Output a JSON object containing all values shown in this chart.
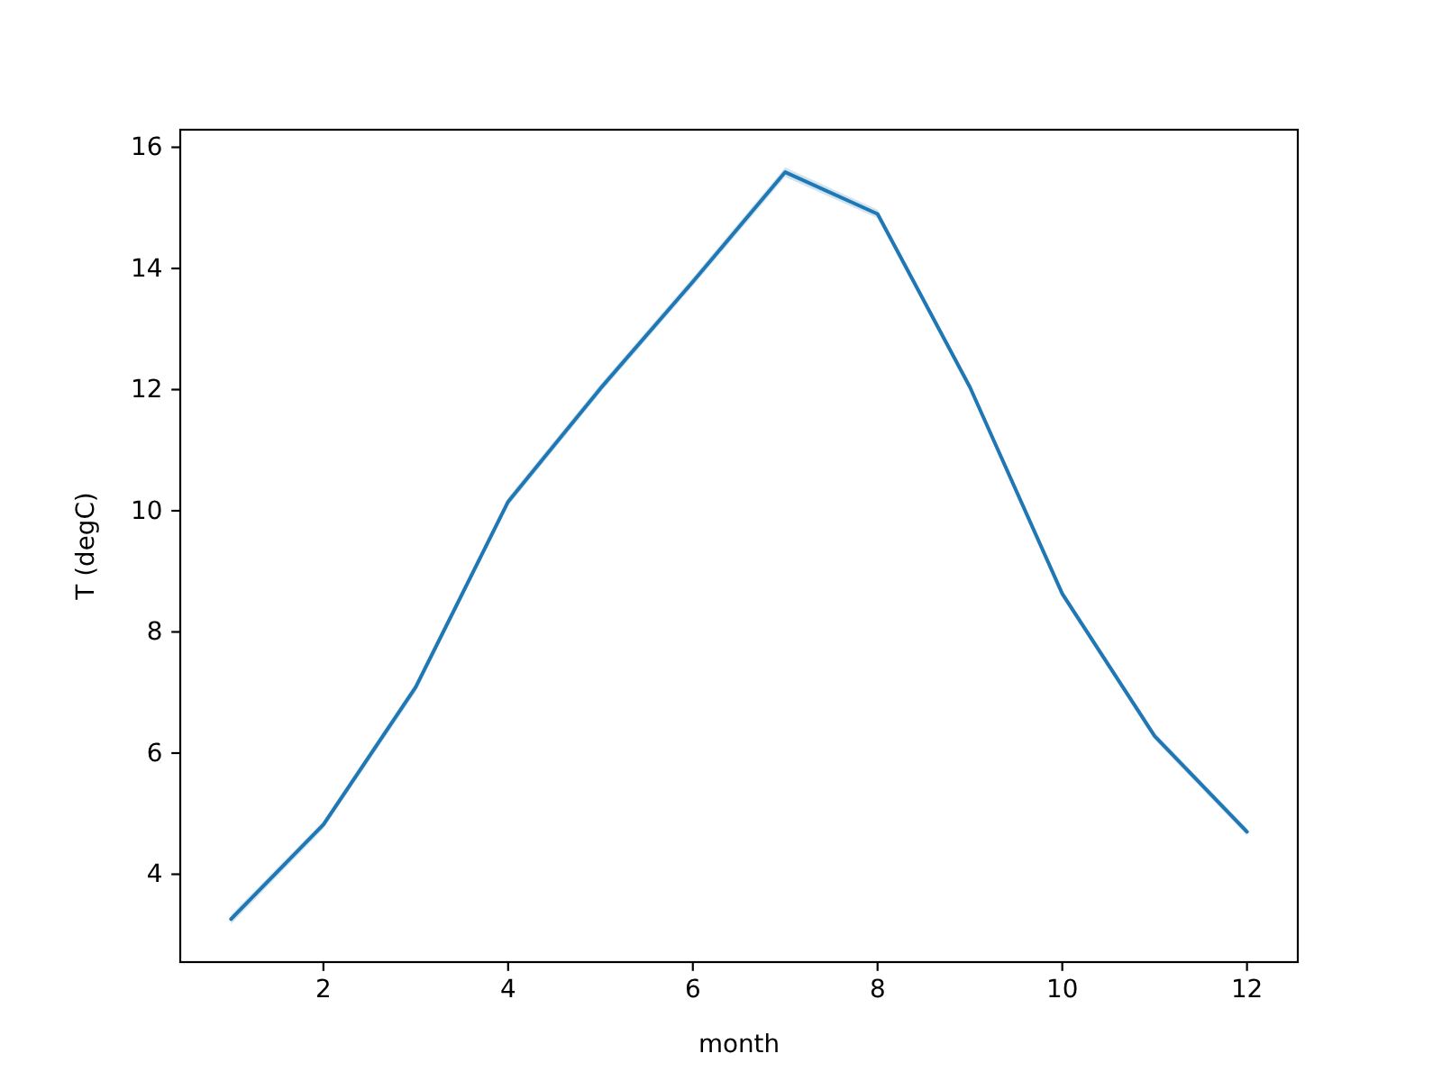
{
  "chart_data": {
    "type": "line",
    "xlabel": "month",
    "ylabel": "T (degC)",
    "x": [
      1,
      2,
      3,
      4,
      5,
      6,
      7,
      8,
      9,
      10,
      11,
      12
    ],
    "series": [
      {
        "color": "#1f77b4",
        "values": [
          3.26,
          4.82,
          7.09,
          10.15,
          12.02,
          13.78,
          15.59,
          14.9,
          12.04,
          8.63,
          6.28,
          4.7
        ],
        "lower": [
          3.18,
          4.75,
          7.01,
          10.08,
          11.95,
          13.71,
          15.51,
          14.83,
          11.98,
          8.57,
          6.22,
          4.64
        ],
        "upper": [
          3.33,
          4.88,
          7.16,
          10.22,
          12.09,
          13.85,
          15.67,
          14.97,
          12.1,
          8.69,
          6.34,
          4.76
        ]
      }
    ],
    "xlim": [
      0.45,
      12.55
    ],
    "ylim": [
      2.55,
      16.29
    ],
    "xticks": [
      2,
      4,
      6,
      8,
      10,
      12
    ],
    "yticks": [
      4,
      6,
      8,
      10,
      12,
      14,
      16
    ],
    "marker": "none",
    "line_style": "solid",
    "grid": false
  }
}
